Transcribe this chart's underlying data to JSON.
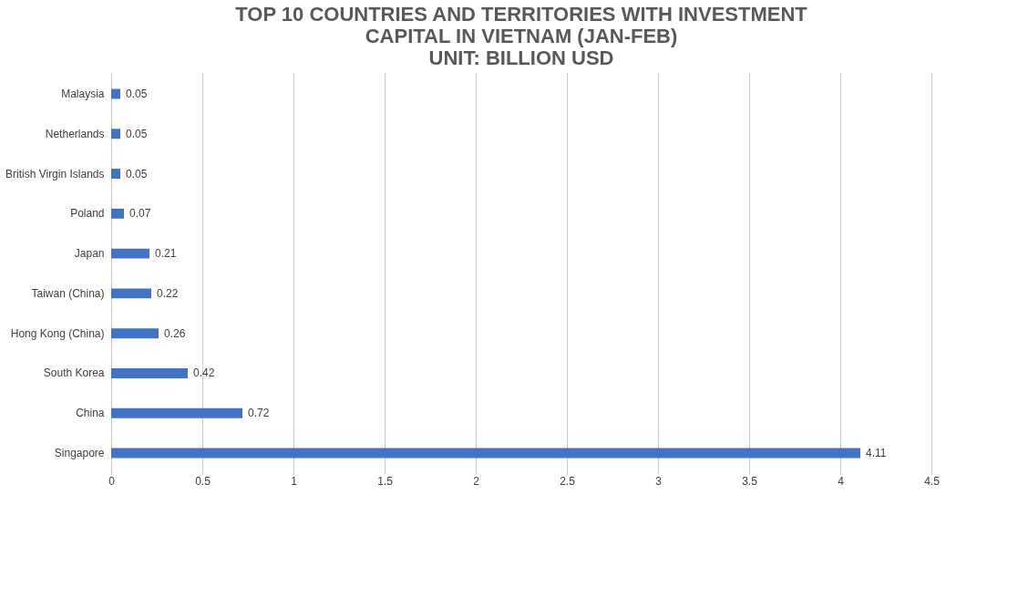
{
  "chart_data": {
    "type": "bar",
    "orientation": "horizontal",
    "title": "TOP 10 COUNTRIES AND TERRITORIES WITH INVESTMENT\nCAPITAL IN VIETNAM (JAN-FEB)\nUNIT: BILLION USD",
    "categories": [
      "Malaysia",
      "Netherlands",
      "British Virgin Islands",
      "Poland",
      "Japan",
      "Taiwan (China)",
      "Hong Kong (China)",
      "South Korea",
      "China",
      "Singapore"
    ],
    "values": [
      0.05,
      0.05,
      0.05,
      0.07,
      0.21,
      0.22,
      0.26,
      0.42,
      0.72,
      4.11
    ],
    "color": "#4472c4",
    "xlim": [
      0,
      4.5
    ],
    "xticks": [
      0,
      0.5,
      1,
      1.5,
      2,
      2.5,
      3,
      3.5,
      4,
      4.5
    ],
    "grid": "x",
    "data_labels": true
  }
}
